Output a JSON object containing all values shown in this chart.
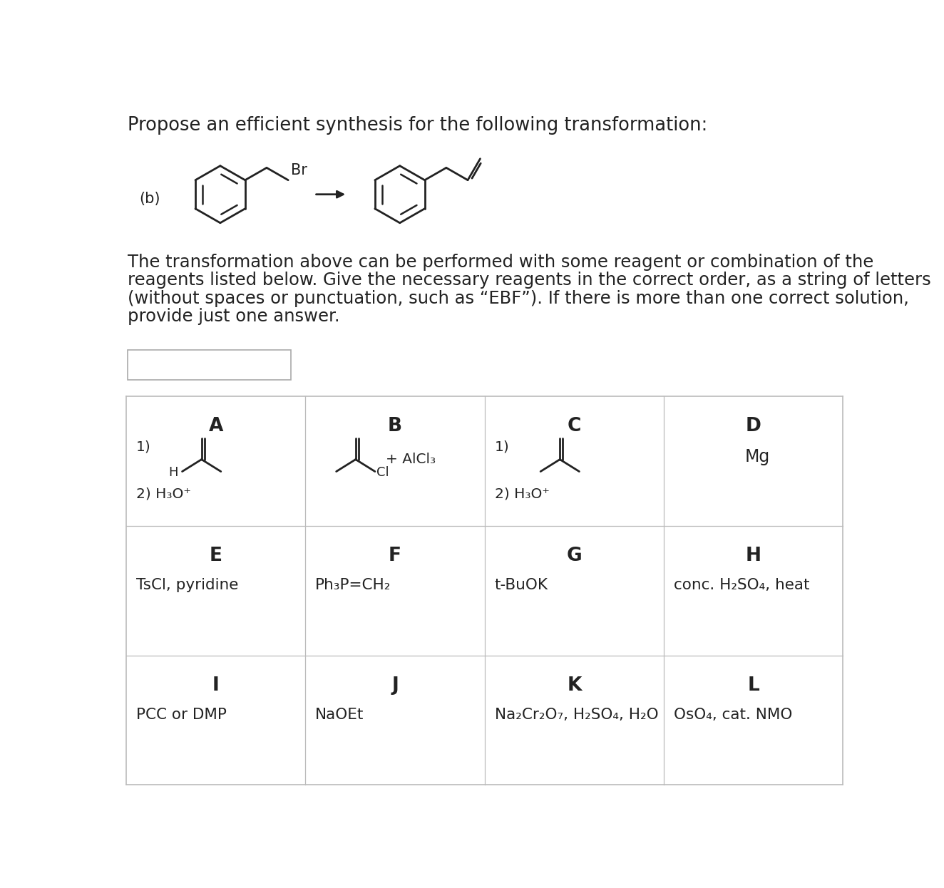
{
  "title": "Propose an efficient synthesis for the following transformation:",
  "bg_color": "#ffffff",
  "text_color": "#222222",
  "paragraph": "The transformation above can be performed with some reagent or combination of the\nreagents listed below. Give the necessary reagents in the correct order, as a string of letters\n(without spaces or punctuation, such as “EBF”). If there is more than one correct solution,\nprovide just one answer.",
  "col_labels_row1": [
    "A",
    "B",
    "C",
    "D"
  ],
  "col_labels_row2": [
    "E",
    "F",
    "G",
    "H"
  ],
  "col_labels_row3": [
    "I",
    "J",
    "K",
    "L"
  ],
  "row2_texts": [
    "TsCl, pyridine",
    "Ph₃P=CH₂",
    "t-BuOK",
    "conc. H₂SO₄, heat"
  ],
  "row3_texts": [
    "PCC or DMP",
    "NaOEt",
    "Na₂Cr₂O₇, H₂SO₄, H₂O",
    "OsO₄, cat. NMO"
  ],
  "D_text": "Mg",
  "A_step1": "1)",
  "A_step2": "2) H₃O⁺",
  "B_extra": "+ AlCl₃",
  "C_step1": "1)",
  "C_step2": "2) H₃O⁺"
}
